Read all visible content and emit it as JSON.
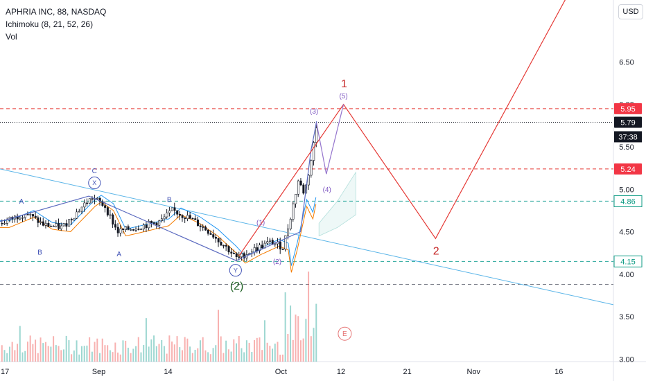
{
  "header": {
    "symbol": "APHRIA INC, 88, NASDAQ",
    "indicator": "Ichimoku (8, 21, 52, 26)",
    "volume": "Vol",
    "currency": "USD"
  },
  "chart_data": {
    "type": "candlestick",
    "x_ticks": [
      "17",
      "Sep",
      "14",
      "Oct",
      "12",
      "21",
      "Nov",
      "16"
    ],
    "y_ticks": [
      "6.50",
      "6.00",
      "5.50",
      "5.00",
      "4.50",
      "4.00",
      "3.50",
      "3.00"
    ],
    "ylim": [
      2.97,
      7.23
    ],
    "x_range": [
      0,
      100
    ],
    "levels": [
      {
        "value": 5.95,
        "color": "#e53935",
        "label": "5.95"
      },
      {
        "value": 5.24,
        "color": "#e53935",
        "label": "5.24"
      },
      {
        "value": 4.86,
        "color": "#26a69a",
        "label": "4.86"
      },
      {
        "value": 4.15,
        "color": "#26a69a",
        "label": "4.15"
      },
      {
        "value": 3.88,
        "color": "#787b86",
        "label": ""
      }
    ],
    "last_price": {
      "value": 5.79,
      "label": "5.79",
      "countdown": "37:38"
    },
    "trendline": {
      "color": "#5bb5e8",
      "points": [
        [
          0,
          5.24
        ],
        [
          100,
          3.64
        ]
      ]
    },
    "wave_paths": [
      {
        "color": "#5c6bc0",
        "points": [
          [
            0,
            4.62
          ],
          [
            14.5,
            4.92
          ],
          [
            38.5,
            4.16
          ],
          [
            49,
            4.5
          ],
          [
            50.7,
            5.46
          ],
          [
            51.2,
            5.64
          ],
          [
            51.6,
            5.8
          ]
        ]
      },
      {
        "color": "#e53935",
        "points": [
          [
            39,
            4.22
          ],
          [
            56,
            6.0
          ],
          [
            71,
            4.42
          ],
          [
            92.5,
            7.28
          ]
        ]
      },
      {
        "color": "#9575cd",
        "points": [
          [
            51.6,
            5.78
          ],
          [
            53.2,
            5.18
          ],
          [
            56,
            6.0
          ]
        ]
      }
    ],
    "annotations": [
      {
        "text": "A",
        "x": 3.5,
        "y": 4.83,
        "color": "#3f51b5",
        "size": 10
      },
      {
        "text": "B",
        "x": 6.5,
        "y": 4.23,
        "color": "#3f51b5",
        "size": 10
      },
      {
        "text": "C",
        "x": 15.4,
        "y": 5.19,
        "color": "#3f51b5",
        "size": 10
      },
      {
        "text": "X",
        "x": 15.4,
        "y": 5.05,
        "color": "#3f51b5",
        "size": 9,
        "circle": true
      },
      {
        "text": "A",
        "x": 19.4,
        "y": 4.21,
        "color": "#3f51b5",
        "size": 10
      },
      {
        "text": "B",
        "x": 27.6,
        "y": 4.85,
        "color": "#3f51b5",
        "size": 10
      },
      {
        "text": "Y",
        "x": 38.4,
        "y": 4.02,
        "color": "#3f51b5",
        "size": 9,
        "circle": true
      },
      {
        "text": "(2)",
        "x": 38.6,
        "y": 3.82,
        "color": "#1b5e20",
        "size": 16
      },
      {
        "text": "(1)",
        "x": 42.5,
        "y": 4.58,
        "color": "#7e57c2",
        "size": 10
      },
      {
        "text": "(2)",
        "x": 45.2,
        "y": 4.12,
        "color": "#7e57c2",
        "size": 10
      },
      {
        "text": "(3)",
        "x": 51.2,
        "y": 5.89,
        "color": "#7e57c2",
        "size": 10
      },
      {
        "text": "(4)",
        "x": 53.3,
        "y": 4.97,
        "color": "#7e57c2",
        "size": 10
      },
      {
        "text": "(5)",
        "x": 56,
        "y": 6.07,
        "color": "#7e57c2",
        "size": 10
      },
      {
        "text": "1",
        "x": 56.1,
        "y": 6.2,
        "color": "#c62828",
        "size": 16
      },
      {
        "text": "2",
        "x": 71.1,
        "y": 4.23,
        "color": "#c62828",
        "size": 16
      },
      {
        "text": "E",
        "x": 56.2,
        "y": 3.27,
        "color": "#e57373",
        "size": 10,
        "circle": true
      }
    ]
  }
}
